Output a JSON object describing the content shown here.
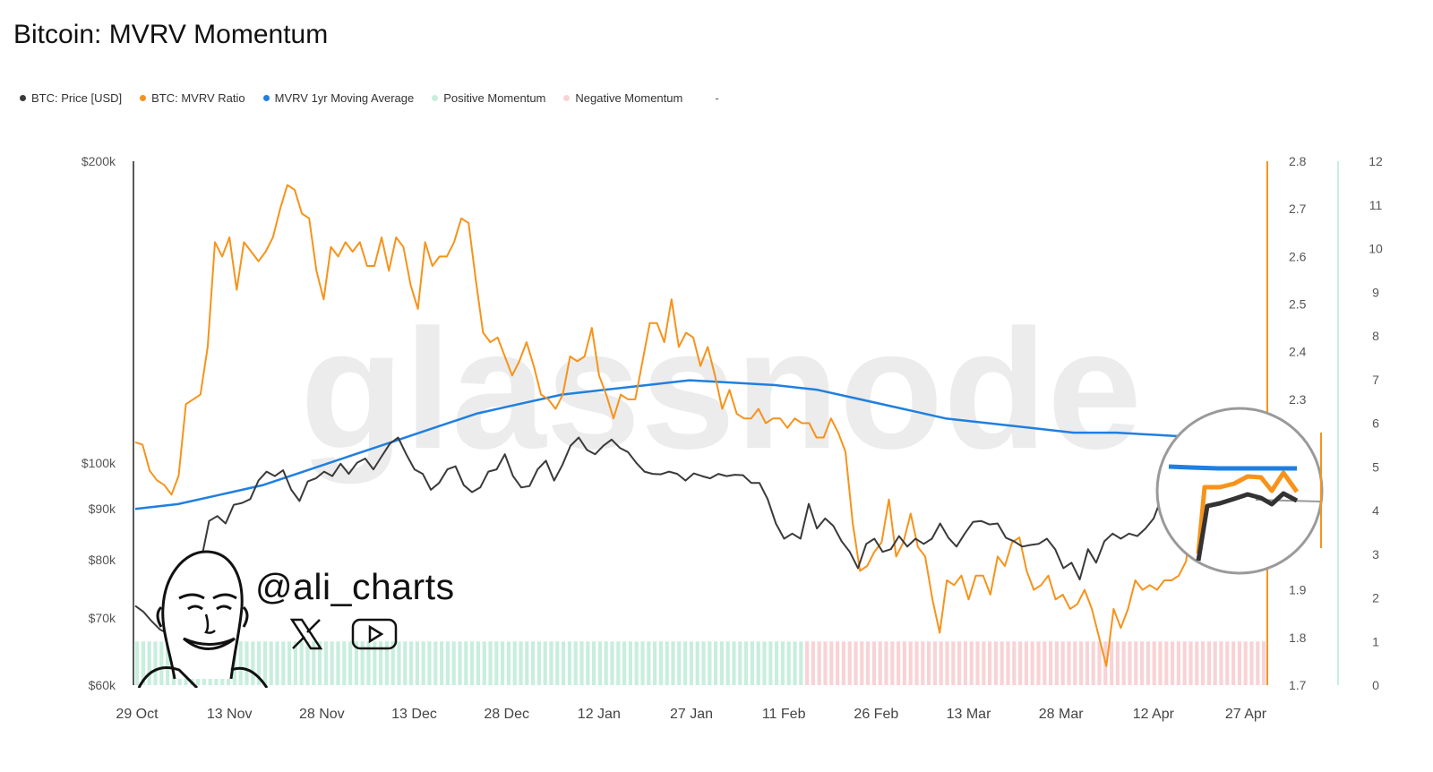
{
  "title": "Bitcoin: MVRV Momentum",
  "legend": [
    {
      "label": "BTC: Price [USD]",
      "color": "#3a3a3a"
    },
    {
      "label": "BTC: MVRV Ratio",
      "color": "#f7931a"
    },
    {
      "label": "MVRV 1yr Moving Average",
      "color": "#1f7fe0"
    },
    {
      "label": "Positive Momentum",
      "color": "#c8eedd"
    },
    {
      "label": "Negative Momentum",
      "color": "#f8d3d6"
    }
  ],
  "legend_trailing": "-",
  "watermark": "glassnode",
  "author": {
    "handle": "@ali_charts",
    "icons": [
      "x-logo-icon",
      "youtube-icon",
      "avatar-caricature"
    ]
  },
  "chart_data": {
    "type": "line",
    "title": "Bitcoin: MVRV Momentum",
    "x_ticks": [
      "29 Oct",
      "13 Nov",
      "28 Nov",
      "13 Dec",
      "28 Dec",
      "12 Jan",
      "27 Jan",
      "11 Feb",
      "26 Feb",
      "13 Mar",
      "28 Mar",
      "12 Apr",
      "27 Apr"
    ],
    "x_range": [
      "2024-10-29",
      "2025-05-02"
    ],
    "y_left": {
      "ticks": [
        "$200k",
        "$100k",
        "$90k",
        "$80k",
        "$70k",
        "$60k"
      ],
      "values": [
        200000,
        100000,
        90000,
        80000,
        70000,
        60000
      ],
      "scale": "log",
      "range": [
        60000,
        200000
      ]
    },
    "y_right_mvrv": {
      "ticks": [
        "2.8",
        "2.7",
        "2.6",
        "2.5",
        "2.4",
        "2.3",
        "1.9",
        "1.8",
        "1.7"
      ],
      "range": [
        1.7,
        2.8
      ]
    },
    "y_right_momentum": {
      "ticks": [
        "12",
        "11",
        "10",
        "9",
        "8",
        "7",
        "6",
        "5",
        "4",
        "3",
        "2",
        "1",
        "0"
      ],
      "range": [
        0,
        12
      ]
    },
    "series": [
      {
        "name": "BTC: Price [USD]",
        "color": "#3a3a3a",
        "axis": "price",
        "values": [
          72000,
          71000,
          69500,
          68200,
          67500,
          69800,
          75500,
          76000,
          79800,
          87500,
          88500,
          87000,
          90800,
          91200,
          92000,
          96000,
          98000,
          97000,
          98300,
          94000,
          91600,
          95800,
          96500,
          98000,
          97000,
          99800,
          97500,
          100000,
          101000,
          98500,
          101500,
          104500,
          106000,
          102000,
          98500,
          97500,
          94000,
          95500,
          98500,
          99200,
          95000,
          93500,
          94500,
          98000,
          98500,
          102000,
          97000,
          94500,
          94800,
          98500,
          100500,
          96000,
          99500,
          104000,
          106000,
          103000,
          102000,
          104000,
          105500,
          103500,
          102500,
          100000,
          98000,
          97500,
          97400,
          98000,
          97500,
          96000,
          97600,
          97000,
          96500,
          97500,
          97000,
          97300,
          97200,
          95500,
          95500,
          92000,
          87000,
          84000,
          85000,
          84000,
          91000,
          86000,
          88000,
          86500,
          83500,
          81500,
          78500,
          83000,
          84000,
          81500,
          82000,
          84500,
          82500,
          84000,
          83000,
          84000,
          87000,
          84200,
          82500,
          85000,
          87300,
          87500,
          86800,
          87000,
          84200,
          83500,
          82500,
          82800,
          83000,
          84000,
          82000,
          78500,
          79500,
          76500,
          82000,
          79500,
          83500,
          85000,
          84000,
          85000,
          84500,
          86000,
          88000,
          92500,
          93500,
          94500,
          95000,
          94000,
          95000,
          96500,
          95200,
          96000,
          97000,
          95500
        ]
      },
      {
        "name": "BTC: MVRV Ratio",
        "color": "#f7931a",
        "axis": "mvrv",
        "values": [
          2.21,
          2.205,
          2.15,
          2.13,
          2.12,
          2.1,
          2.14,
          2.29,
          2.3,
          2.31,
          2.41,
          2.63,
          2.6,
          2.64,
          2.53,
          2.63,
          2.61,
          2.59,
          2.61,
          2.64,
          2.7,
          2.75,
          2.74,
          2.69,
          2.68,
          2.57,
          2.51,
          2.62,
          2.6,
          2.63,
          2.61,
          2.63,
          2.58,
          2.58,
          2.64,
          2.57,
          2.64,
          2.62,
          2.54,
          2.49,
          2.63,
          2.58,
          2.6,
          2.6,
          2.63,
          2.68,
          2.67,
          2.55,
          2.44,
          2.42,
          2.43,
          2.39,
          2.35,
          2.38,
          2.42,
          2.37,
          2.31,
          2.3,
          2.28,
          2.31,
          2.39,
          2.38,
          2.39,
          2.45,
          2.35,
          2.31,
          2.26,
          2.31,
          2.3,
          2.3,
          2.38,
          2.46,
          2.46,
          2.42,
          2.51,
          2.41,
          2.44,
          2.43,
          2.37,
          2.41,
          2.35,
          2.28,
          2.32,
          2.27,
          2.26,
          2.26,
          2.28,
          2.25,
          2.26,
          2.26,
          2.24,
          2.26,
          2.25,
          2.25,
          2.22,
          2.22,
          2.26,
          2.23,
          2.19,
          2.04,
          1.94,
          1.95,
          1.98,
          2.0,
          2.09,
          1.97,
          2.0,
          2.06,
          1.99,
          1.97,
          1.88,
          1.81,
          1.92,
          1.91,
          1.93,
          1.88,
          1.93,
          1.93,
          1.89,
          1.97,
          1.95,
          2.0,
          2.01,
          1.94,
          1.9,
          1.91,
          1.93,
          1.88,
          1.89,
          1.86,
          1.87,
          1.9,
          1.86,
          1.8,
          1.74,
          1.86,
          1.82,
          1.86,
          1.92,
          1.9,
          1.91,
          1.9,
          1.92,
          1.92,
          1.93,
          1.96,
          2.09,
          2.09,
          2.1,
          2.11,
          2.1,
          2.09,
          2.1,
          2.08
        ]
      },
      {
        "name": "MVRV 1yr Moving Average",
        "color": "#1f7fe0",
        "axis": "mvrv",
        "values": [
          2.07,
          2.08,
          2.1,
          2.12,
          2.15,
          2.18,
          2.21,
          2.24,
          2.27,
          2.29,
          2.31,
          2.32,
          2.33,
          2.34,
          2.335,
          2.33,
          2.32,
          2.3,
          2.28,
          2.26,
          2.25,
          2.24,
          2.23,
          2.23,
          2.225,
          2.22,
          2.22
        ]
      }
    ],
    "momentum_bars": {
      "positive_until": "2025-02-16",
      "negative_after": "2025-02-16",
      "max": 1.0
    },
    "annotation": "zoom circle highlighting late April upturn",
    "grid": false,
    "legend_position": "top-left"
  }
}
